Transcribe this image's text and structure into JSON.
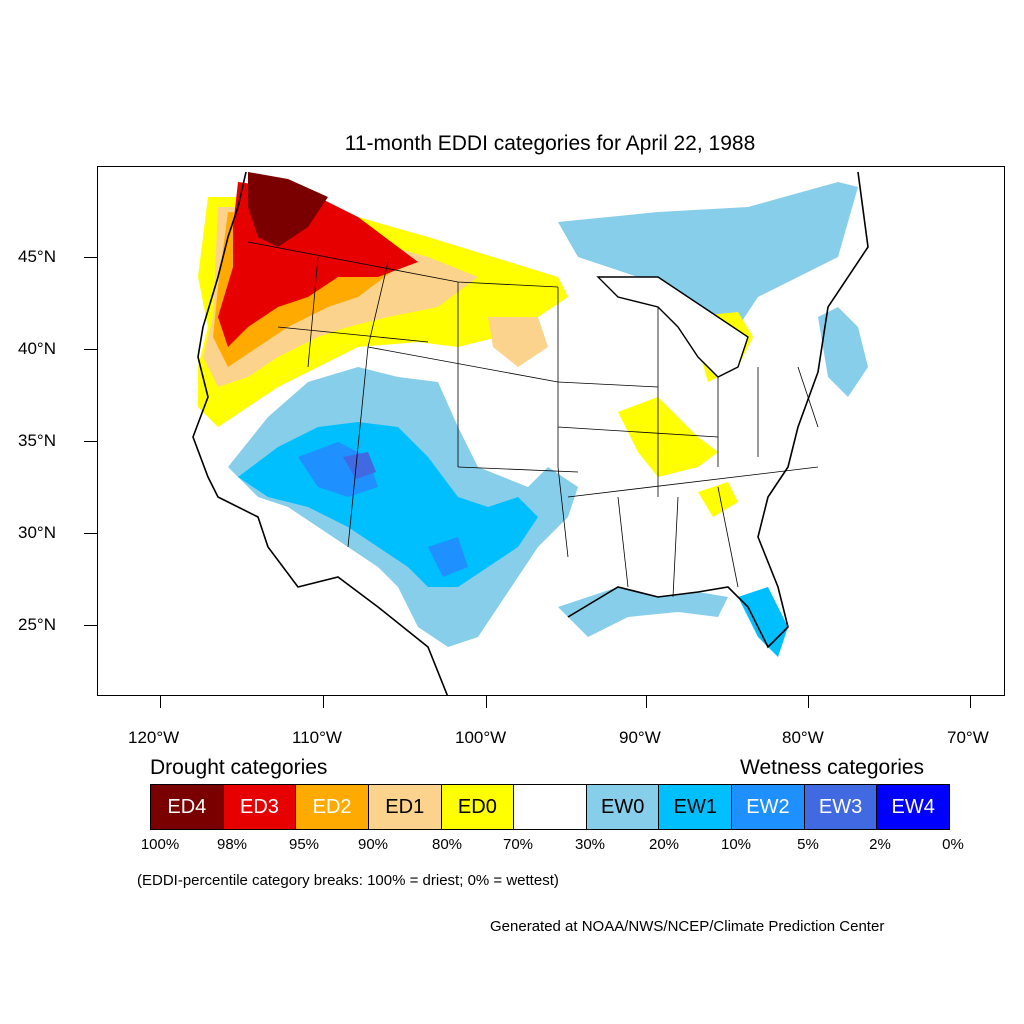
{
  "title": "11-month EDDI categories for April 22, 1988",
  "lat_labels": [
    "45°N",
    "40°N",
    "35°N",
    "30°N",
    "25°N"
  ],
  "lon_labels": [
    "120°W",
    "110°W",
    "100°W",
    "90°W",
    "80°W",
    "70°W"
  ],
  "legend": {
    "drought_heading": "Drought categories",
    "wetness_heading": "Wetness categories",
    "categories": [
      {
        "label": "ED4",
        "color": "#7a0000",
        "text_color": "#ffffff"
      },
      {
        "label": "ED3",
        "color": "#e60000",
        "text_color": "#ffffff"
      },
      {
        "label": "ED2",
        "color": "#ffaa00",
        "text_color": "#ffffff"
      },
      {
        "label": "ED1",
        "color": "#fcd38c",
        "text_color": "#000000"
      },
      {
        "label": "ED0",
        "color": "#ffff00",
        "text_color": "#000000"
      },
      {
        "label": "",
        "color": "#ffffff",
        "text_color": "#000000"
      },
      {
        "label": "EW0",
        "color": "#87ceeb",
        "text_color": "#000000"
      },
      {
        "label": "EW1",
        "color": "#00bfff",
        "text_color": "#000000"
      },
      {
        "label": "EW2",
        "color": "#1e90ff",
        "text_color": "#ffffff"
      },
      {
        "label": "EW3",
        "color": "#4169e1",
        "text_color": "#ffffff"
      },
      {
        "label": "EW4",
        "color": "#0000ff",
        "text_color": "#ffffff"
      }
    ],
    "percentiles": [
      "100%",
      "98%",
      "95%",
      "90%",
      "80%",
      "70%",
      "30%",
      "20%",
      "10%",
      "5%",
      "2%",
      "0%"
    ]
  },
  "note": "(EDDI-percentile category breaks: 100% = driest; 0% = wettest)",
  "credit": "Generated at NOAA/NWS/NCEP/Climate Prediction Center"
}
